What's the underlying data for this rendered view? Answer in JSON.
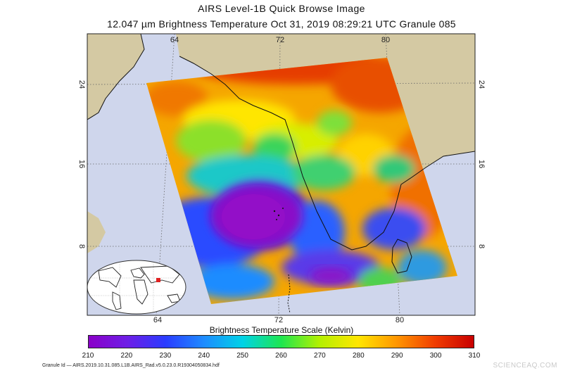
{
  "header": {
    "title": "AIRS Level-1B Quick Browse Image",
    "subtitle": "12.047 µm Brightness Temperature    Oct 31, 2019 08:29:21 UTC   Granule 085"
  },
  "map": {
    "top_lon_ticks": [
      "64",
      "72",
      "80"
    ],
    "bottom_lon_ticks": [
      "64",
      "72",
      "80"
    ],
    "left_lat_ticks": [
      "24",
      "16",
      "8"
    ],
    "right_lat_ticks": [
      "24",
      "16",
      "8"
    ],
    "colors": {
      "ocean": "#cfd6ec",
      "land": "#d4c9a3",
      "coast": "#111111"
    }
  },
  "colorbar": {
    "title": "Brightness Temperature Scale (Kelvin)",
    "labels": [
      "210",
      "220",
      "230",
      "240",
      "250",
      "260",
      "270",
      "280",
      "290",
      "300",
      "310"
    ],
    "colors": [
      "#8a00c8",
      "#6e1ee6",
      "#2a3cff",
      "#1e8cff",
      "#00d2e6",
      "#1ee650",
      "#b4f000",
      "#ffe600",
      "#ff9600",
      "#f03c00",
      "#c80000"
    ]
  },
  "footer": {
    "granule_id": "Granule Id — AIRS.2019.10.31.085.L1B.AIRS_Rad.v5.0.23.0.R19304050834.hdf",
    "watermark": "SCIENCEAQ.COM"
  }
}
